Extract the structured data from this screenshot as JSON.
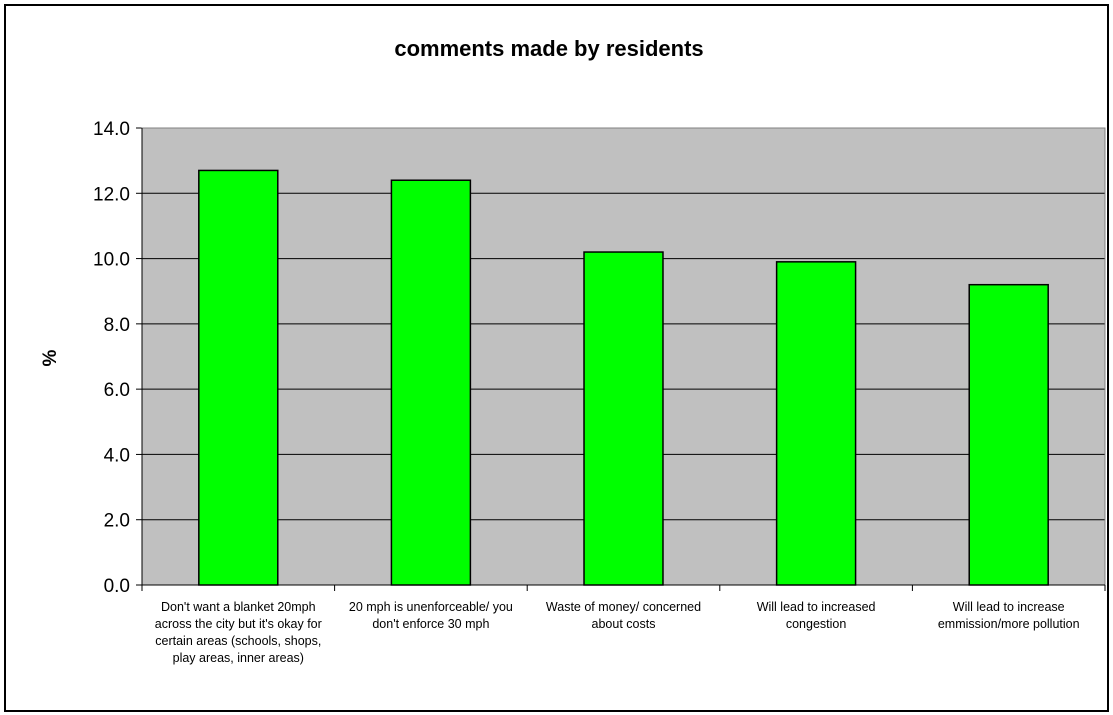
{
  "chart_data": {
    "type": "bar",
    "title": "comments made by residents",
    "xlabel": "",
    "ylabel": "%",
    "ylim": [
      0,
      14
    ],
    "yticks": [
      "0.0",
      "2.0",
      "4.0",
      "6.0",
      "8.0",
      "10.0",
      "12.0",
      "14.0"
    ],
    "categories": [
      "Don't want a blanket 20mph across the city but it's okay for certain areas (schools, shops, play areas, inner areas)",
      "20 mph is unenforceable/ you don't enforce 30 mph",
      "Waste of money/ concerned about costs",
      "Will lead to increased congestion",
      "Will lead to increase emmission/more pollution"
    ],
    "values": [
      12.7,
      12.4,
      10.2,
      9.9,
      9.2
    ],
    "grid": true,
    "legend": "none",
    "colors": {
      "bar_fill": "#00FF00",
      "bar_stroke": "#000000",
      "plot_background": "#C0C0C0",
      "gridline": "#000000"
    }
  }
}
